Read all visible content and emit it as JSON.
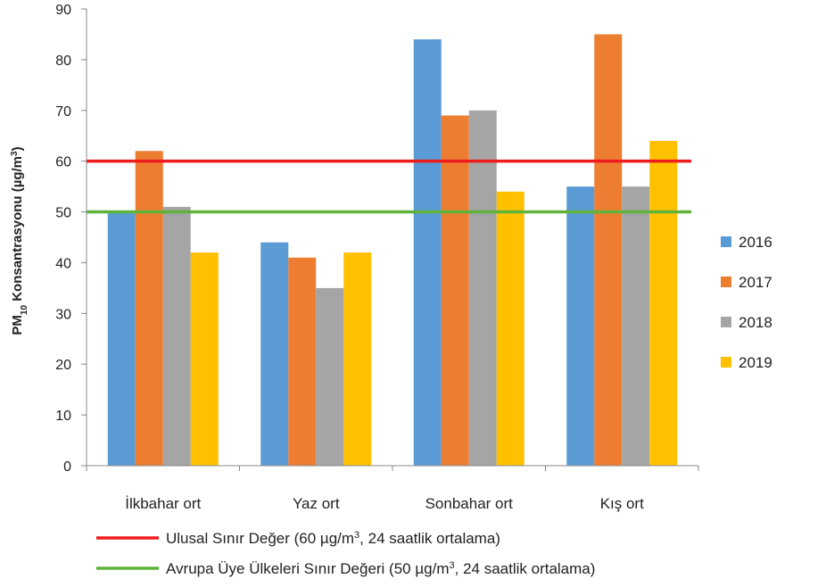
{
  "chart_data": {
    "type": "bar",
    "ylabel": {
      "pre": "PM",
      "sub": "10",
      "mid": " Konsantrasyonu  (µg/m",
      "sup": "3",
      "post": ")"
    },
    "ylim": [
      0,
      90
    ],
    "yticks": [
      "0",
      "10",
      "20",
      "30",
      "40",
      "50",
      "60",
      "70",
      "80",
      "90"
    ],
    "categories": [
      "İlkbahar ort",
      "Yaz ort",
      "Sonbahar ort",
      "Kış ort"
    ],
    "series": [
      {
        "name": "2016",
        "color": "#5b9bd5",
        "values": [
          50,
          44,
          84,
          55
        ]
      },
      {
        "name": "2017",
        "color": "#ed7d31",
        "values": [
          62,
          41,
          69,
          85
        ]
      },
      {
        "name": "2018",
        "color": "#a5a5a5",
        "values": [
          51,
          35,
          70,
          55
        ]
      },
      {
        "name": "2019",
        "color": "#ffc000",
        "values": [
          42,
          42,
          54,
          64
        ]
      }
    ],
    "reference_lines": [
      {
        "value": 60,
        "color": "#ee1c1c",
        "label": {
          "pre": "Ulusal Sınır Değer (60 µg/m",
          "sup": "3",
          "post": ", 24 saatlik  ortalama)"
        }
      },
      {
        "value": 50,
        "color": "#5fb23a",
        "label": {
          "pre": "Avrupa Üye Ülkeleri Sınır Değeri (50 µg/m",
          "sup": "3",
          "post": ", 24 saatlik  ortalama)"
        }
      }
    ],
    "legend_position": "right",
    "grid": false
  }
}
